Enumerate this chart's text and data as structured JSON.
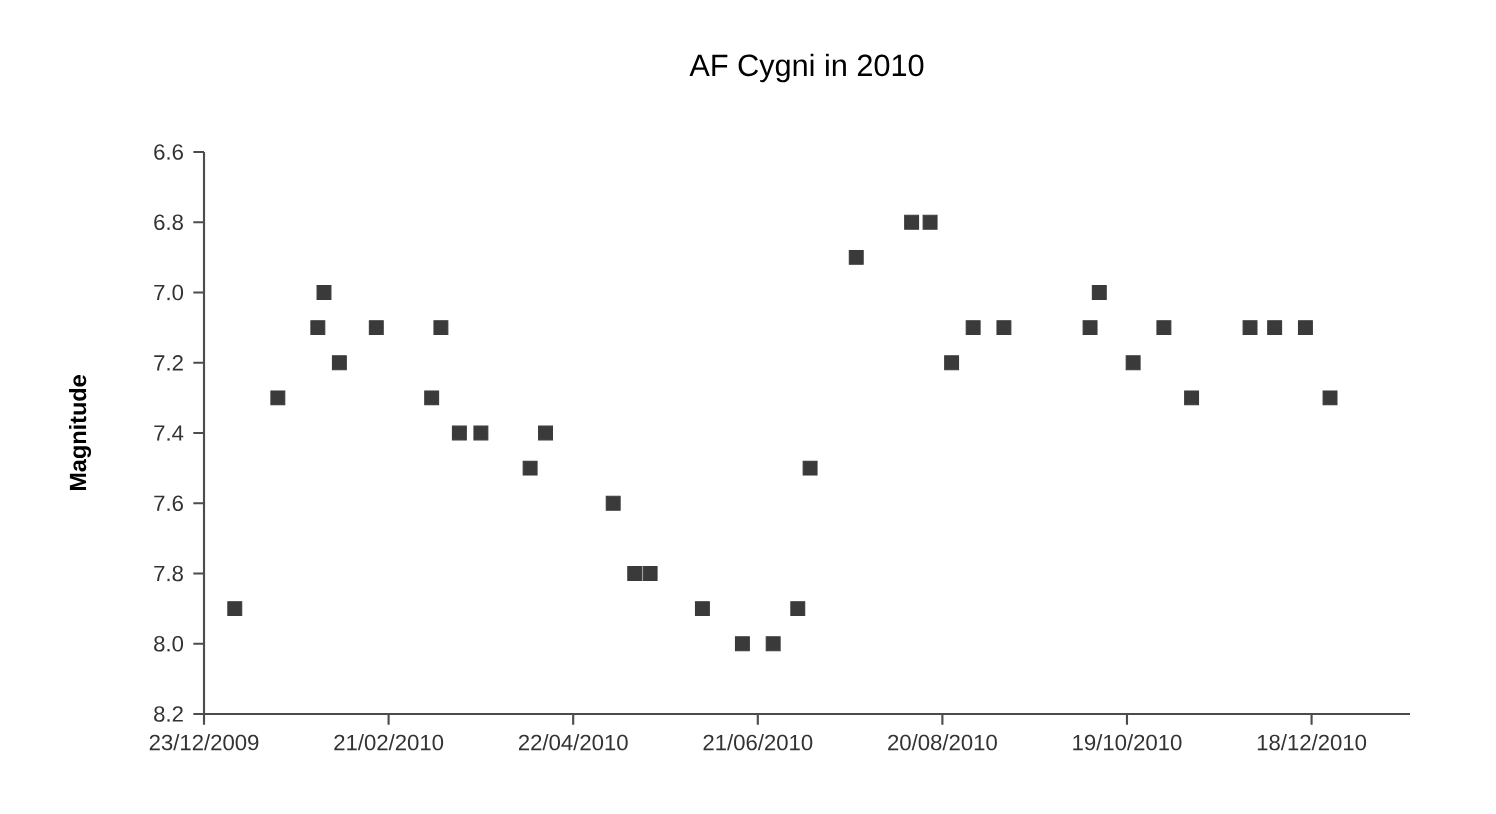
{
  "chart_data": {
    "type": "scatter",
    "title": "AF Cygni in 2010",
    "ylabel": "Magnitude",
    "x": [
      "2010-01-02",
      "2010-01-16",
      "2010-01-29",
      "2010-01-31",
      "2010-02-05",
      "2010-02-17",
      "2010-03-07",
      "2010-03-10",
      "2010-03-16",
      "2010-03-23",
      "2010-04-08",
      "2010-04-13",
      "2010-05-05",
      "2010-05-12",
      "2010-05-17",
      "2010-06-03",
      "2010-06-16",
      "2010-06-26",
      "2010-07-04",
      "2010-07-08",
      "2010-07-23",
      "2010-08-10",
      "2010-08-16",
      "2010-08-23",
      "2010-08-30",
      "2010-09-09",
      "2010-10-07",
      "2010-10-10",
      "2010-10-21",
      "2010-10-31",
      "2010-11-09",
      "2010-11-28",
      "2010-12-06",
      "2010-12-16",
      "2010-12-24"
    ],
    "values": [
      7.9,
      7.3,
      7.1,
      7.0,
      7.2,
      7.1,
      7.3,
      7.1,
      7.4,
      7.4,
      7.5,
      7.4,
      7.6,
      7.8,
      7.8,
      7.9,
      8.0,
      8.0,
      7.9,
      7.5,
      6.9,
      6.8,
      6.8,
      7.2,
      7.1,
      7.1,
      7.1,
      7.0,
      7.2,
      7.1,
      7.3,
      7.1,
      7.1,
      7.1,
      7.3
    ],
    "color": "#3a3a3a",
    "marker": "square",
    "xlim": [
      "2009-12-23",
      "2011-01-19"
    ],
    "xticks": [
      {
        "value": "2009-12-23",
        "label": "23/12/2009"
      },
      {
        "value": "2010-02-21",
        "label": "21/02/2010"
      },
      {
        "value": "2010-04-22",
        "label": "22/04/2010"
      },
      {
        "value": "2010-06-21",
        "label": "21/06/2010"
      },
      {
        "value": "2010-08-20",
        "label": "20/08/2010"
      },
      {
        "value": "2010-10-19",
        "label": "19/10/2010"
      },
      {
        "value": "2010-12-18",
        "label": "18/12/2010"
      }
    ],
    "ylim": [
      8.2,
      6.6
    ],
    "yticks": [
      {
        "value": 6.6,
        "label": "6.6"
      },
      {
        "value": 6.8,
        "label": "6.8"
      },
      {
        "value": 7.0,
        "label": "7.0"
      },
      {
        "value": 7.2,
        "label": "7.2"
      },
      {
        "value": 7.4,
        "label": "7.4"
      },
      {
        "value": 7.6,
        "label": "7.6"
      },
      {
        "value": 7.8,
        "label": "7.8"
      },
      {
        "value": 8.0,
        "label": "8.0"
      },
      {
        "value": 8.2,
        "label": "8.2"
      }
    ]
  }
}
